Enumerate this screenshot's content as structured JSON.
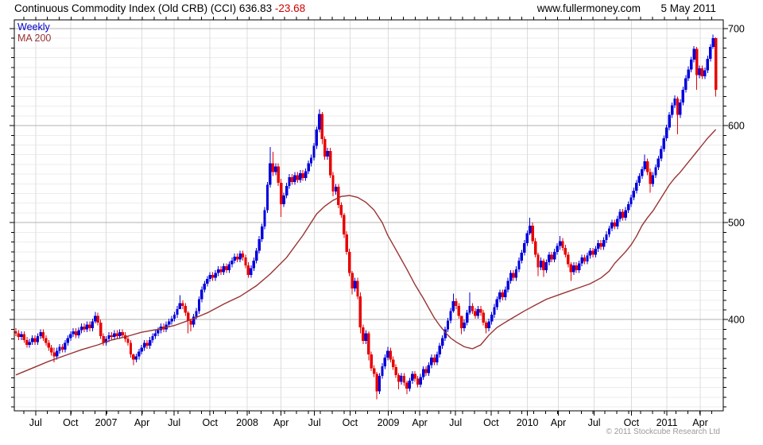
{
  "header": {
    "title": "Continuous Commodity Index (Old CRB) (CCI) 636.83",
    "change": "-23.68",
    "website": "www.fullermoney.com",
    "date": "5 May 2011"
  },
  "legend": {
    "series": "Weekly",
    "overlay": "MA 200"
  },
  "footer": {
    "copyright": "© 2011 Stockcube Research Ltd"
  },
  "colors": {
    "up": "#0000dd",
    "down": "#e80000",
    "ma": "#993333",
    "change_red": "#cc0000",
    "grid_minor": "#ececec",
    "grid_vertical": "#dcdcdc",
    "grid_major": "#b3b3b3",
    "axis": "#000000",
    "label": "#000000",
    "copyright_gray": "#9a9a9a"
  },
  "chart_data": {
    "type": "candlestick",
    "title": "Continuous Commodity Index (Old CRB) (CCI)",
    "series_label": "Weekly",
    "overlay_label": "MA 200",
    "last_close": 636.83,
    "last_change": -23.68,
    "y_axis": {
      "min": 306,
      "max": 709,
      "major_ticks": [
        400,
        500,
        600,
        700
      ],
      "minor_step": 10
    },
    "x_ticks": [
      {
        "label": "Jul",
        "week": 7.2
      },
      {
        "label": "Oct",
        "week": 20.0
      },
      {
        "label": "2007",
        "week": 33.0
      },
      {
        "label": "Apr",
        "week": 46.1
      },
      {
        "label": "Jul",
        "week": 57.9
      },
      {
        "label": "Oct",
        "week": 71.0
      },
      {
        "label": "2008",
        "week": 84.6
      },
      {
        "label": "Apr",
        "week": 97.0
      },
      {
        "label": "Jul",
        "week": 109.2
      },
      {
        "label": "Oct",
        "week": 122.2
      },
      {
        "label": "2009",
        "week": 136.2
      },
      {
        "label": "Apr",
        "week": 147.7
      },
      {
        "label": "Jul",
        "week": 160.8
      },
      {
        "label": "Oct",
        "week": 173.8
      },
      {
        "label": "2010",
        "week": 187.1
      },
      {
        "label": "Apr",
        "week": 198.4
      },
      {
        "label": "Jul",
        "week": 211.5
      },
      {
        "label": "Oct",
        "week": 225.1
      },
      {
        "label": "2011",
        "week": 238.1
      },
      {
        "label": "Apr",
        "week": 250.3
      }
    ],
    "month_tick_start_week": 7.2,
    "month_tick_step_weeks": 4.3385,
    "first_open": 388,
    "default_wick": 3,
    "closes": [
      386,
      382,
      385,
      379,
      374,
      377,
      381,
      377,
      383,
      387,
      381,
      376,
      371,
      366,
      362,
      368,
      372,
      369,
      376,
      381,
      385,
      388,
      384,
      389,
      393,
      390,
      395,
      391,
      398,
      404,
      397,
      383,
      376,
      380,
      384,
      382,
      386,
      383,
      387,
      384,
      380,
      376,
      364,
      359,
      362,
      367,
      371,
      376,
      373,
      379,
      383,
      386,
      389,
      393,
      390,
      395,
      398,
      401,
      405,
      411,
      417,
      414,
      407,
      399,
      395,
      403,
      409,
      421,
      431,
      437,
      442,
      446,
      443,
      448,
      452,
      449,
      455,
      451,
      457,
      461,
      465,
      462,
      468,
      464,
      456,
      446,
      453,
      461,
      471,
      483,
      496,
      513,
      539,
      561,
      552,
      558,
      541,
      519,
      528,
      538,
      547,
      542,
      549,
      544,
      551,
      546,
      553,
      561,
      567,
      579,
      596,
      612,
      586,
      568,
      574,
      549,
      532,
      537,
      518,
      508,
      488,
      470,
      448,
      432,
      440,
      424,
      392,
      378,
      386,
      364,
      350,
      344,
      326,
      342,
      352,
      361,
      368,
      359,
      351,
      343,
      336,
      342,
      335,
      329,
      337,
      344,
      339,
      333,
      341,
      349,
      345,
      353,
      361,
      356,
      364,
      373,
      381,
      390,
      399,
      409,
      419,
      414,
      404,
      391,
      397,
      407,
      414,
      409,
      404,
      411,
      407,
      397,
      391,
      398,
      405,
      413,
      421,
      428,
      423,
      431,
      440,
      448,
      443,
      452,
      461,
      469,
      479,
      489,
      497,
      481,
      467,
      454,
      461,
      451,
      459,
      467,
      462,
      470,
      476,
      481,
      474,
      467,
      457,
      449,
      456,
      451,
      458,
      464,
      460,
      466,
      471,
      467,
      473,
      479,
      475,
      482,
      488,
      494,
      500,
      496,
      504,
      511,
      505,
      513,
      519,
      526,
      533,
      541,
      548,
      555,
      563,
      552,
      540,
      549,
      557,
      566,
      576,
      587,
      598,
      611,
      621,
      628,
      611,
      624,
      637,
      649,
      658,
      668,
      679,
      652,
      659,
      651,
      657,
      669,
      681,
      690,
      636.83
    ],
    "wick_overrides": {
      "14": [
        371,
        356
      ],
      "29": [
        408,
        396
      ],
      "43": [
        365,
        353
      ],
      "60": [
        425,
        412
      ],
      "63": [
        409,
        386
      ],
      "64": [
        401,
        388
      ],
      "93": [
        578,
        536
      ],
      "94": [
        573,
        548
      ],
      "97": [
        545,
        506
      ],
      "111": [
        617,
        593
      ],
      "112": [
        614,
        581
      ],
      "116": [
        552,
        527
      ],
      "120": [
        510,
        484
      ],
      "123": [
        450,
        426
      ],
      "126": [
        428,
        386
      ],
      "129": [
        388,
        358
      ],
      "132": [
        346,
        318
      ],
      "136": [
        372,
        358
      ],
      "140": [
        345,
        328
      ],
      "143": [
        337,
        323
      ],
      "160": [
        427,
        407
      ],
      "163": [
        400,
        385
      ],
      "166": [
        428,
        405
      ],
      "172": [
        399,
        386
      ],
      "188": [
        505,
        487
      ],
      "191": [
        469,
        445
      ],
      "193": [
        463,
        444
      ],
      "199": [
        486,
        472
      ],
      "203": [
        459,
        440
      ],
      "230": [
        570,
        553
      ],
      "232": [
        556,
        531
      ],
      "242": [
        630,
        591
      ],
      "249": [
        681,
        637
      ],
      "255": [
        694,
        679
      ],
      "256": [
        691,
        630
      ]
    },
    "ma_points": [
      [
        0,
        343
      ],
      [
        6,
        350
      ],
      [
        12,
        357
      ],
      [
        18,
        363
      ],
      [
        24,
        369
      ],
      [
        30,
        374
      ],
      [
        35,
        379
      ],
      [
        41,
        383
      ],
      [
        46,
        387
      ],
      [
        52,
        390
      ],
      [
        58,
        394
      ],
      [
        64,
        400
      ],
      [
        70,
        407
      ],
      [
        76,
        416
      ],
      [
        82,
        424
      ],
      [
        88,
        435
      ],
      [
        93,
        447
      ],
      [
        99,
        464
      ],
      [
        105,
        487
      ],
      [
        110,
        509
      ],
      [
        113,
        517
      ],
      [
        116,
        523
      ],
      [
        119,
        527
      ],
      [
        122,
        528
      ],
      [
        125,
        526
      ],
      [
        128,
        521
      ],
      [
        131,
        513
      ],
      [
        134,
        500
      ],
      [
        136,
        487
      ],
      [
        139,
        472
      ],
      [
        141,
        462
      ],
      [
        143,
        452
      ],
      [
        146,
        436
      ],
      [
        149,
        422
      ],
      [
        151,
        412
      ],
      [
        153,
        402
      ],
      [
        155,
        394
      ],
      [
        157,
        387
      ],
      [
        159,
        381
      ],
      [
        161,
        377
      ],
      [
        164,
        372
      ],
      [
        167,
        370
      ],
      [
        170,
        374
      ],
      [
        173,
        384
      ],
      [
        176,
        392
      ],
      [
        180,
        399
      ],
      [
        183,
        404
      ],
      [
        186,
        409
      ],
      [
        190,
        415
      ],
      [
        194,
        421
      ],
      [
        198,
        425
      ],
      [
        202,
        429
      ],
      [
        206,
        433
      ],
      [
        210,
        437
      ],
      [
        214,
        443
      ],
      [
        217,
        450
      ],
      [
        219,
        458
      ],
      [
        221,
        464
      ],
      [
        223,
        470
      ],
      [
        225,
        477
      ],
      [
        227,
        486
      ],
      [
        229,
        497
      ],
      [
        231,
        505
      ],
      [
        233,
        512
      ],
      [
        235,
        521
      ],
      [
        237,
        530
      ],
      [
        239,
        539
      ],
      [
        241,
        546
      ],
      [
        243,
        552
      ],
      [
        245,
        559
      ],
      [
        247,
        566
      ],
      [
        249,
        573
      ],
      [
        251,
        580
      ],
      [
        253,
        587
      ],
      [
        255,
        593
      ],
      [
        256,
        596
      ]
    ]
  }
}
